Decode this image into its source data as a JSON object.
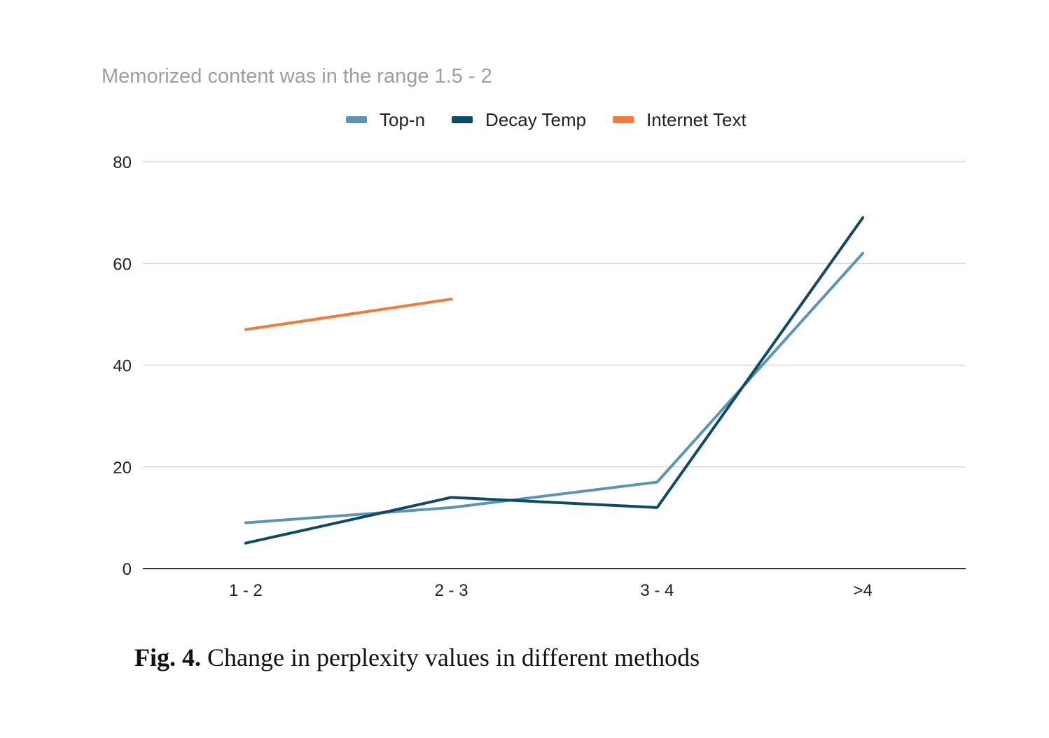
{
  "chart_data": {
    "type": "line",
    "title": "Memorized content was in the range 1.5 - 2",
    "xlabel": "",
    "ylabel": "",
    "categories": [
      "1 - 2",
      "2 - 3",
      "3 - 4",
      ">4"
    ],
    "ylim": [
      0,
      80
    ],
    "yticks": [
      0,
      20,
      40,
      60,
      80
    ],
    "grid": true,
    "legend_position": "top",
    "series": [
      {
        "name": "Top-n",
        "color": "#5b95b5",
        "values": [
          9,
          12,
          17,
          62
        ]
      },
      {
        "name": "Decay Temp",
        "color": "#0d4a66",
        "values": [
          5,
          14,
          12,
          69
        ]
      },
      {
        "name": "Internet Text",
        "color": "#f47a3c",
        "values": [
          47,
          53,
          null,
          null
        ]
      }
    ]
  },
  "caption": {
    "label": "Fig. 4.",
    "text": "Change in perplexity values in different methods"
  }
}
